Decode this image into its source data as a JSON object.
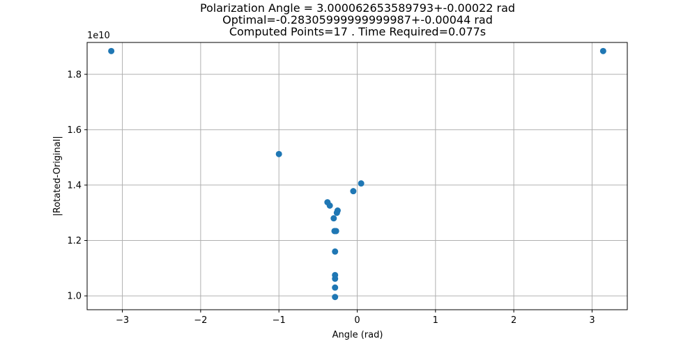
{
  "chart_data": {
    "type": "scatter",
    "title_lines": [
      "Polarization Angle = 3.000062653589793+-0.00022 rad",
      "Optimal=-0.28305999999999987+-0.00044 rad",
      "Computed Points=17 . Time Required=0.077s"
    ],
    "xlabel": "Angle (rad)",
    "ylabel": "|Rotated-Original|",
    "y_offset_label": "1e10",
    "xlim": [
      -3.45,
      3.45
    ],
    "ylim": [
      0.95,
      1.915
    ],
    "x_ticks": [
      -3,
      -2,
      -1,
      0,
      1,
      2,
      3
    ],
    "x_tick_labels": [
      "−3",
      "−2",
      "−1",
      "0",
      "1",
      "2",
      "3"
    ],
    "y_ticks": [
      1.0,
      1.2,
      1.4,
      1.6,
      1.8
    ],
    "y_tick_labels": [
      "1.0",
      "1.2",
      "1.4",
      "1.6",
      "1.8"
    ],
    "grid": true,
    "marker_color": "#1f77b4",
    "points": [
      {
        "x": -3.1416,
        "y": 1.884
      },
      {
        "x": 3.1416,
        "y": 1.884
      },
      {
        "x": -1.0,
        "y": 1.512
      },
      {
        "x": 0.05,
        "y": 1.406
      },
      {
        "x": -0.05,
        "y": 1.378
      },
      {
        "x": -0.38,
        "y": 1.338
      },
      {
        "x": -0.35,
        "y": 1.326
      },
      {
        "x": -0.25,
        "y": 1.308
      },
      {
        "x": -0.26,
        "y": 1.3
      },
      {
        "x": -0.3,
        "y": 1.28
      },
      {
        "x": -0.29,
        "y": 1.234
      },
      {
        "x": -0.27,
        "y": 1.234
      },
      {
        "x": -0.283,
        "y": 1.16
      },
      {
        "x": -0.283,
        "y": 1.075
      },
      {
        "x": -0.283,
        "y": 1.062
      },
      {
        "x": -0.283,
        "y": 1.03
      },
      {
        "x": -0.283,
        "y": 0.996
      }
    ]
  }
}
